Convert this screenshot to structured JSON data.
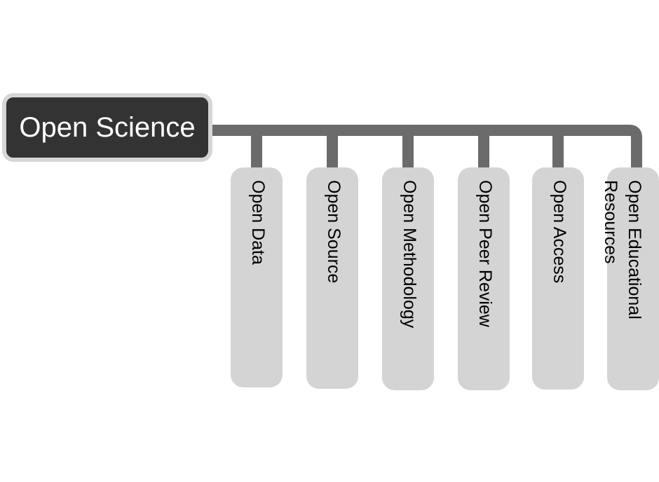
{
  "diagram": {
    "root": {
      "label": "Open Science"
    },
    "children": [
      {
        "label": "Open Data"
      },
      {
        "label": "Open Source"
      },
      {
        "label": "Open Methodology"
      },
      {
        "label": "Open Peer Review"
      },
      {
        "label": "Open Access"
      },
      {
        "label": "Open Educational Resources"
      }
    ],
    "colors": {
      "root_fill": "#333333",
      "root_border": "#d6d6d6",
      "root_text": "#ffffff",
      "connector": "#6b6b6b",
      "child_fill": "#d4d4d4",
      "child_text": "#000000"
    }
  }
}
